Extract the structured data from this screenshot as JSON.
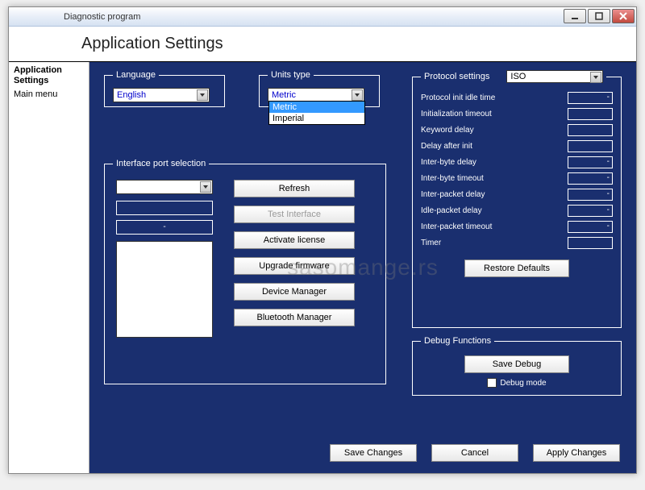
{
  "window": {
    "title": "Diagnostic program"
  },
  "header": {
    "title": "Application Settings"
  },
  "sidebar": {
    "items": [
      {
        "label": "Application Settings",
        "active": true
      },
      {
        "label": "Main menu",
        "active": false
      }
    ]
  },
  "language": {
    "legend": "Language",
    "value": "English"
  },
  "units": {
    "legend": "Units type",
    "value": "Metric",
    "options": [
      "Metric",
      "Imperial"
    ],
    "selected_index": 0
  },
  "protocol": {
    "legend": "Protocol settings",
    "selector_value": "ISO",
    "rows": [
      {
        "label": "Protocol init idle time",
        "value": "-"
      },
      {
        "label": "Initialization timeout",
        "value": ""
      },
      {
        "label": "Keyword delay",
        "value": ""
      },
      {
        "label": "Delay after init",
        "value": ""
      },
      {
        "label": "Inter-byte delay",
        "value": "-"
      },
      {
        "label": "Inter-byte timeout",
        "value": "-"
      },
      {
        "label": "Inter-packet delay",
        "value": "-"
      },
      {
        "label": "Idle-packet delay",
        "value": "-"
      },
      {
        "label": "Inter-packet timeout",
        "value": "-"
      },
      {
        "label": "Timer",
        "value": ""
      }
    ],
    "restore_label": "Restore Defaults"
  },
  "port": {
    "legend": "Interface port selection",
    "combo_value": "",
    "text1": "",
    "text2": "-",
    "buttons": {
      "refresh": "Refresh",
      "test": "Test Interface",
      "activate": "Activate license",
      "upgrade": "Upgrade firmware",
      "device_mgr": "Device Manager",
      "bt_mgr": "Bluetooth Manager"
    }
  },
  "debug": {
    "legend": "Debug Functions",
    "save_label": "Save Debug",
    "mode_label": "Debug mode",
    "mode_checked": false
  },
  "bottom": {
    "save": "Save Changes",
    "cancel": "Cancel",
    "apply": "Apply Changes"
  },
  "watermark": "sasomange.rs",
  "colors": {
    "main_bg": "#1a2f6f",
    "accent": "#3399ff",
    "link_text": "#0000cc"
  }
}
